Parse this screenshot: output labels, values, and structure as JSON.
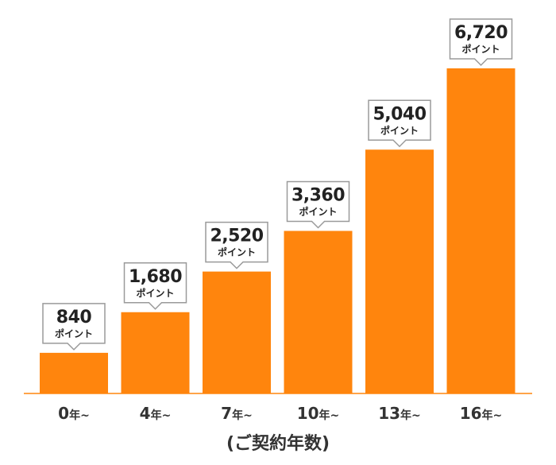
{
  "chart_data": {
    "type": "bar",
    "categories": [
      "0",
      "4",
      "7",
      "10",
      "13",
      "16"
    ],
    "category_suffix": "年~",
    "values": [
      840,
      1680,
      2520,
      3360,
      5040,
      6720
    ],
    "value_labels": [
      "840",
      "1,680",
      "2,520",
      "3,360",
      "5,040",
      "6,720"
    ],
    "value_unit": "ポイント",
    "xlabel": "(ご契約年数)",
    "ylabel": "",
    "title": "",
    "ylim": [
      0,
      6720
    ],
    "grid": false,
    "legend": "none",
    "colors": {
      "bar": "#FF850D",
      "baseline": "#FF850D",
      "callout_border": "#9A9A9A",
      "text": "#333333"
    }
  }
}
